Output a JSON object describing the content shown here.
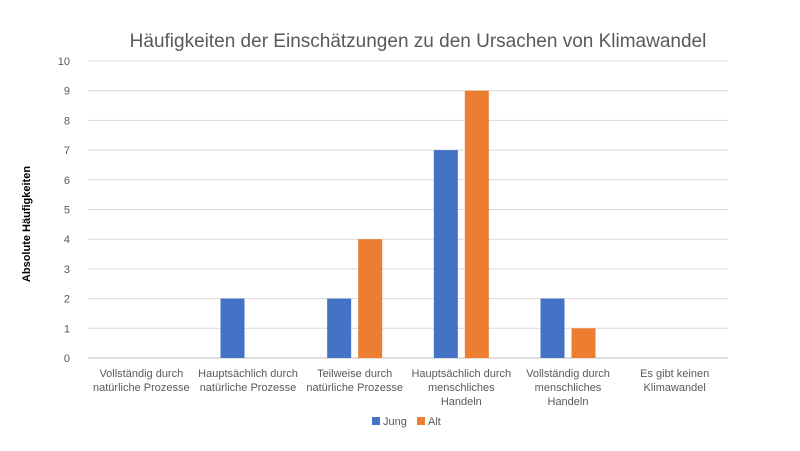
{
  "chart_data": {
    "type": "bar",
    "title": "Häufigkeiten der Einschätzungen zu den Ursachen von Klimawandel",
    "xlabel": "",
    "ylabel": "Absolute Häufigkeiten",
    "ylim": [
      0,
      10
    ],
    "yticks": [
      0,
      1,
      2,
      3,
      4,
      5,
      6,
      7,
      8,
      9,
      10
    ],
    "grid": true,
    "legend_position": "bottom",
    "categories": [
      [
        "Vollständig durch",
        "natürliche Prozesse"
      ],
      [
        "Hauptsächlich durch",
        "natürliche Prozesse"
      ],
      [
        "Teilweise durch",
        "natürliche Prozesse"
      ],
      [
        "Hauptsächlich durch",
        "menschliches",
        "Handeln"
      ],
      [
        "Vollständig durch",
        "menschliches",
        "Handeln"
      ],
      [
        "Es gibt keinen",
        "Klimawandel"
      ]
    ],
    "series": [
      {
        "name": "Jung",
        "color": "#4472C4",
        "values": [
          0,
          2,
          2,
          7,
          2,
          0
        ]
      },
      {
        "name": "Alt",
        "color": "#ED7D31",
        "values": [
          0,
          0,
          4,
          9,
          1,
          0
        ]
      }
    ]
  }
}
